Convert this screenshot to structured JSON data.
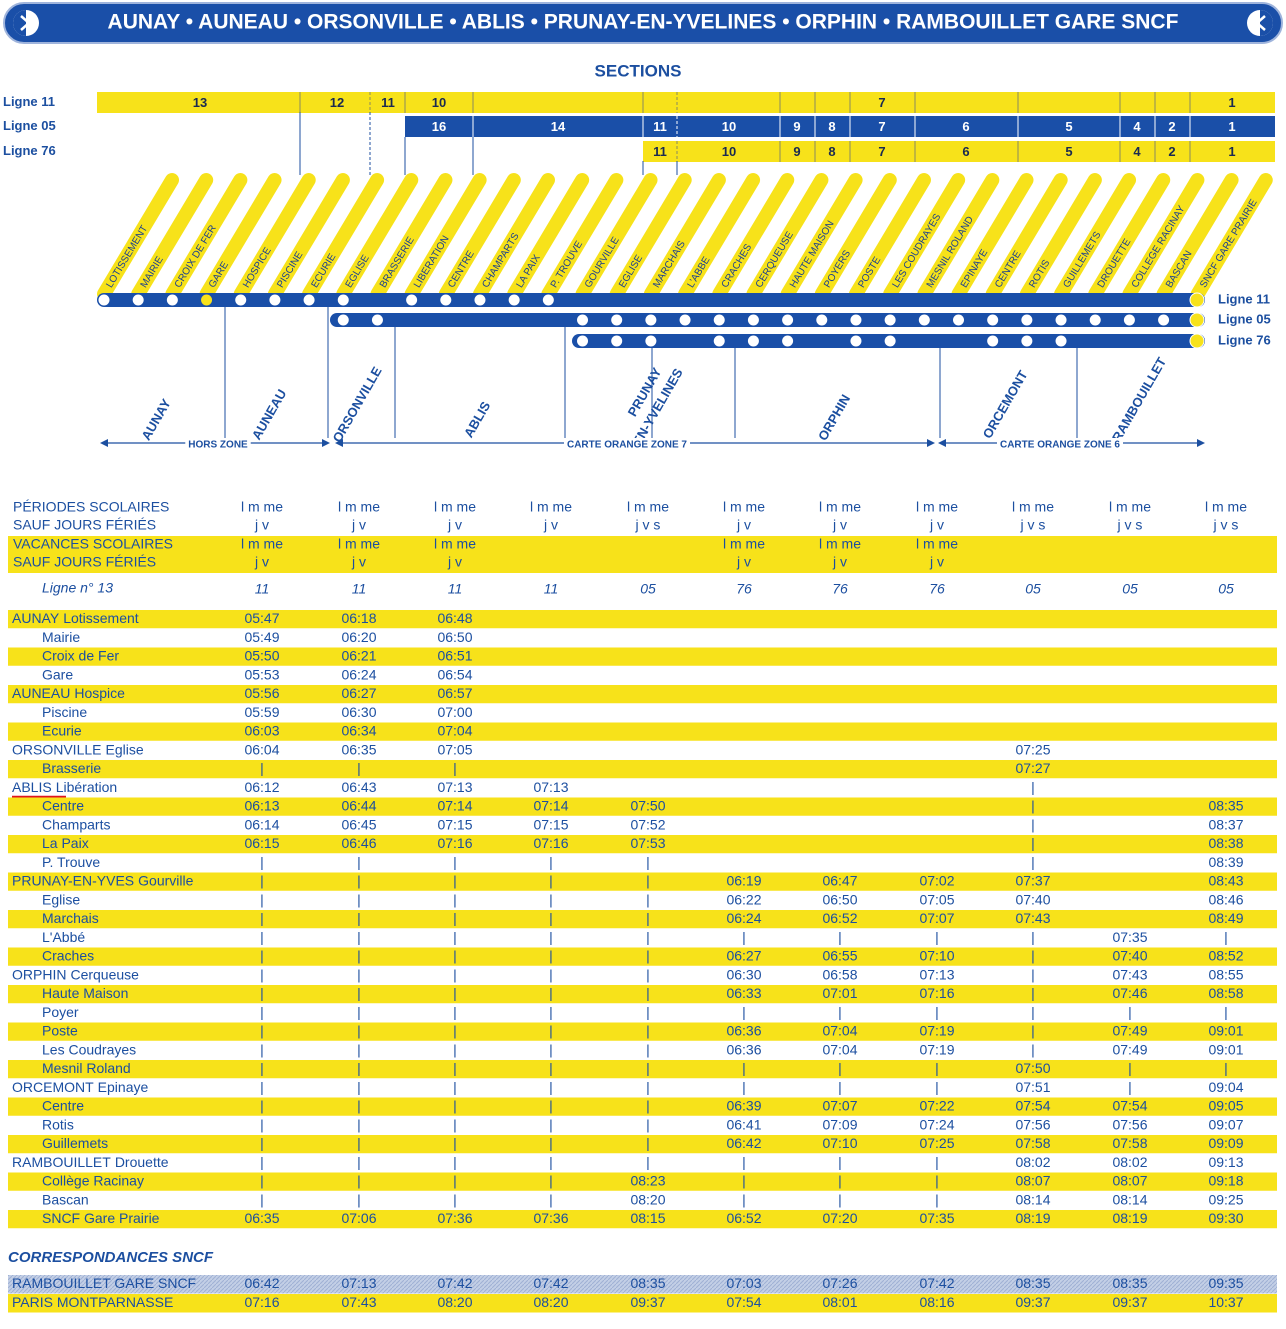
{
  "header": {
    "title": "AUNAY • AUNEAU • ORSONVILLE • ABLIS • PRUNAY-EN-YVELINES • ORPHIN • RAMBOUILLET GARE SNCF"
  },
  "sections": {
    "title": "SECTIONS",
    "rows": [
      {
        "name": "Ligne 11",
        "cells": [
          "13",
          "12",
          "11",
          "10",
          "7",
          "1"
        ]
      },
      {
        "name": "Ligne 05",
        "cells": [
          "16",
          "14",
          "11",
          "10",
          "9",
          "8",
          "7",
          "6",
          "5",
          "4",
          "2",
          "1"
        ]
      },
      {
        "name": "Ligne 76",
        "cells": [
          "11",
          "10",
          "9",
          "8",
          "7",
          "6",
          "5",
          "4",
          "2",
          "1"
        ]
      }
    ]
  },
  "diagram": {
    "stops": [
      "LOTISSEMENT",
      "MAIRIE",
      "CROIX DE FER",
      "GARE",
      "HOSPICE",
      "PISCINE",
      "ECURIE",
      "EGLISE",
      "BRASSERIE",
      "LIBERATION",
      "CENTRE",
      "CHAMPARTS",
      "LA PAIX",
      "P. TROUVE",
      "GOURVILLE",
      "EGLISE",
      "MARCHAIS",
      "L'ABBE",
      "CRACHES",
      "CERQUEUSE",
      "HAUTE MAISON",
      "POYERS",
      "POSTE",
      "LES COUDRAYES",
      "MESNIL ROLAND",
      "EPINAYE",
      "CENTRE",
      "ROTIS",
      "GUILLEMETS",
      "DROUETTE",
      "COLLEGE RACINAY",
      "BASCAN",
      "SNCF GARE PRAIRIE"
    ],
    "lines": [
      "Ligne 11",
      "Ligne 05",
      "Ligne 76"
    ],
    "communes": [
      [
        "AUNAY"
      ],
      [
        "AUNEAU"
      ],
      [
        "ORSONVILLE"
      ],
      [
        "ABLIS"
      ],
      [
        "PRUNAY",
        "EN-YVELINES"
      ],
      [
        "ORPHIN"
      ],
      [
        "ORCEMONT"
      ],
      [
        "RAMBOUILLET"
      ]
    ],
    "zones": [
      "HORS ZONE",
      "CARTE ORANGE ZONE 7",
      "CARTE ORANGE ZONE 6"
    ]
  },
  "timetable": {
    "periods": [
      {
        "label": [
          "PÉRIODES SCOLAIRES",
          "SAUF JOURS FÉRIÉS"
        ],
        "days": [
          [
            "l m me",
            "j v"
          ],
          [
            "l m me",
            "j v"
          ],
          [
            "l m me",
            "j v"
          ],
          [
            "l m me",
            "j v"
          ],
          [
            "l m me",
            "j v s"
          ],
          [
            "l m me",
            "j v"
          ],
          [
            "l m me",
            "j v"
          ],
          [
            "l m me",
            "j v"
          ],
          [
            "l m me",
            "j v s"
          ],
          [
            "l m me",
            "j v s"
          ],
          [
            "l m me",
            "j v s"
          ]
        ]
      },
      {
        "label": [
          "VACANCES SCOLAIRES",
          "SAUF JOURS FÉRIÉS"
        ],
        "days": [
          [
            "l m me",
            "j v"
          ],
          [
            "l m me",
            "j v"
          ],
          [
            "l m me",
            "j v"
          ],
          null,
          null,
          [
            "l m me",
            "j v"
          ],
          [
            "l m me",
            "j v"
          ],
          [
            "l m me",
            "j v"
          ],
          null,
          null,
          null
        ]
      }
    ],
    "line_row": {
      "label": "Ligne n° 13",
      "values": [
        "11",
        "11",
        "11",
        "11",
        "05",
        "76",
        "76",
        "76",
        "05",
        "05",
        "05"
      ]
    },
    "groups": [
      {
        "commune": "AUNAY",
        "stops": [
          {
            "name": "Lotissement",
            "times": [
              "05:47",
              "06:18",
              "06:48",
              null,
              null,
              null,
              null,
              null,
              null,
              null,
              null
            ]
          },
          {
            "name": "Mairie",
            "times": [
              "05:49",
              "06:20",
              "06:50",
              null,
              null,
              null,
              null,
              null,
              null,
              null,
              null
            ]
          },
          {
            "name": "Croix de Fer",
            "times": [
              "05:50",
              "06:21",
              "06:51",
              null,
              null,
              null,
              null,
              null,
              null,
              null,
              null
            ]
          },
          {
            "name": "Gare",
            "times": [
              "05:53",
              "06:24",
              "06:54",
              null,
              null,
              null,
              null,
              null,
              null,
              null,
              null
            ]
          }
        ]
      },
      {
        "commune": "AUNEAU",
        "stops": [
          {
            "name": "Hospice",
            "times": [
              "05:56",
              "06:27",
              "06:57",
              null,
              null,
              null,
              null,
              null,
              null,
              null,
              null
            ]
          },
          {
            "name": "Piscine",
            "times": [
              "05:59",
              "06:30",
              "07:00",
              null,
              null,
              null,
              null,
              null,
              null,
              null,
              null
            ]
          },
          {
            "name": "Ecurie",
            "times": [
              "06:03",
              "06:34",
              "07:04",
              null,
              null,
              null,
              null,
              null,
              null,
              null,
              null
            ]
          }
        ]
      },
      {
        "commune": "ORSONVILLE",
        "stops": [
          {
            "name": "Eglise",
            "times": [
              "06:04",
              "06:35",
              "07:05",
              null,
              null,
              null,
              null,
              null,
              "07:25",
              null,
              null
            ]
          },
          {
            "name": "Brasserie",
            "times": [
              "|",
              "|",
              "|",
              null,
              null,
              null,
              null,
              null,
              "07:27",
              null,
              null
            ]
          }
        ]
      },
      {
        "commune": "ABLIS",
        "stops": [
          {
            "name": "Libération",
            "times": [
              "06:12",
              "06:43",
              "07:13",
              "07:13",
              null,
              null,
              null,
              null,
              "|",
              null,
              null
            ]
          },
          {
            "name": "Centre",
            "times": [
              "06:13",
              "06:44",
              "07:14",
              "07:14",
              "07:50",
              null,
              null,
              null,
              "|",
              null,
              "08:35"
            ]
          },
          {
            "name": "Champarts",
            "times": [
              "06:14",
              "06:45",
              "07:15",
              "07:15",
              "07:52",
              null,
              null,
              null,
              "|",
              null,
              "08:37"
            ]
          },
          {
            "name": "La Paix",
            "times": [
              "06:15",
              "06:46",
              "07:16",
              "07:16",
              "07:53",
              null,
              null,
              null,
              "|",
              null,
              "08:38"
            ]
          },
          {
            "name": "P. Trouve",
            "times": [
              "|",
              "|",
              "|",
              "|",
              "|",
              null,
              null,
              null,
              "|",
              null,
              "08:39"
            ]
          }
        ]
      },
      {
        "commune": "PRUNAY-EN-YVES",
        "stops": [
          {
            "name": "Gourville",
            "times": [
              "|",
              "|",
              "|",
              "|",
              "|",
              "06:19",
              "06:47",
              "07:02",
              "07:37",
              null,
              "08:43"
            ]
          },
          {
            "name": "Eglise",
            "times": [
              "|",
              "|",
              "|",
              "|",
              "|",
              "06:22",
              "06:50",
              "07:05",
              "07:40",
              null,
              "08:46"
            ]
          },
          {
            "name": "Marchais",
            "times": [
              "|",
              "|",
              "|",
              "|",
              "|",
              "06:24",
              "06:52",
              "07:07",
              "07:43",
              null,
              "08:49"
            ]
          },
          {
            "name": "L'Abbé",
            "times": [
              "|",
              "|",
              "|",
              "|",
              "|",
              "|",
              "|",
              "|",
              "|",
              "07:35",
              "|"
            ]
          },
          {
            "name": "Craches",
            "times": [
              "|",
              "|",
              "|",
              "|",
              "|",
              "06:27",
              "06:55",
              "07:10",
              "|",
              "07:40",
              "08:52"
            ]
          }
        ]
      },
      {
        "commune": "ORPHIN",
        "stops": [
          {
            "name": "Cerqueuse",
            "times": [
              "|",
              "|",
              "|",
              "|",
              "|",
              "06:30",
              "06:58",
              "07:13",
              "|",
              "07:43",
              "08:55"
            ]
          },
          {
            "name": "Haute Maison",
            "times": [
              "|",
              "|",
              "|",
              "|",
              "|",
              "06:33",
              "07:01",
              "07:16",
              "|",
              "07:46",
              "08:58"
            ]
          },
          {
            "name": "Poyer",
            "times": [
              "|",
              "|",
              "|",
              "|",
              "|",
              "|",
              "|",
              "|",
              "|",
              "|",
              "|"
            ]
          },
          {
            "name": "Poste",
            "times": [
              "|",
              "|",
              "|",
              "|",
              "|",
              "06:36",
              "07:04",
              "07:19",
              "|",
              "07:49",
              "09:01"
            ]
          },
          {
            "name": "Les Coudrayes",
            "times": [
              "|",
              "|",
              "|",
              "|",
              "|",
              "06:36",
              "07:04",
              "07:19",
              "|",
              "07:49",
              "09:01"
            ]
          },
          {
            "name": "Mesnil Roland",
            "times": [
              "|",
              "|",
              "|",
              "|",
              "|",
              "|",
              "|",
              "|",
              "07:50",
              "|",
              "|"
            ]
          }
        ]
      },
      {
        "commune": "ORCEMONT",
        "stops": [
          {
            "name": "Epinaye",
            "times": [
              "|",
              "|",
              "|",
              "|",
              "|",
              "|",
              "|",
              "|",
              "07:51",
              "|",
              "09:04"
            ]
          },
          {
            "name": "Centre",
            "times": [
              "|",
              "|",
              "|",
              "|",
              "|",
              "06:39",
              "07:07",
              "07:22",
              "07:54",
              "07:54",
              "09:05"
            ]
          },
          {
            "name": "Rotis",
            "times": [
              "|",
              "|",
              "|",
              "|",
              "|",
              "06:41",
              "07:09",
              "07:24",
              "07:56",
              "07:56",
              "09:07"
            ]
          },
          {
            "name": "Guillemets",
            "times": [
              "|",
              "|",
              "|",
              "|",
              "|",
              "06:42",
              "07:10",
              "07:25",
              "07:58",
              "07:58",
              "09:09"
            ]
          }
        ]
      },
      {
        "commune": "RAMBOUILLET",
        "stops": [
          {
            "name": "Drouette",
            "times": [
              "|",
              "|",
              "|",
              "|",
              "|",
              "|",
              "|",
              "|",
              "08:02",
              "08:02",
              "09:13"
            ]
          },
          {
            "name": "Collège Racinay",
            "times": [
              "|",
              "|",
              "|",
              "|",
              "08:23",
              "|",
              "|",
              "|",
              "08:07",
              "08:07",
              "09:18"
            ]
          },
          {
            "name": "Bascan",
            "times": [
              "|",
              "|",
              "|",
              "|",
              "08:20",
              "|",
              "|",
              "|",
              "08:14",
              "08:14",
              "09:25"
            ]
          },
          {
            "name": "SNCF Gare Prairie",
            "times": [
              "06:35",
              "07:06",
              "07:36",
              "07:36",
              "08:15",
              "06:52",
              "07:20",
              "07:35",
              "08:19",
              "08:19",
              "09:30"
            ]
          }
        ]
      }
    ],
    "correspondances": {
      "title": "CORRESPONDANCES SNCF",
      "rows": [
        {
          "name": "RAMBOUILLET GARE SNCF",
          "times": [
            "06:42",
            "07:13",
            "07:42",
            "07:42",
            "08:35",
            "07:03",
            "07:26",
            "07:42",
            "08:35",
            "08:35",
            "09:35"
          ]
        },
        {
          "name": "PARIS MONTPARNASSE",
          "times": [
            "07:16",
            "07:43",
            "08:20",
            "08:20",
            "09:37",
            "07:54",
            "08:01",
            "08:16",
            "09:37",
            "09:37",
            "10:37"
          ]
        }
      ]
    }
  }
}
